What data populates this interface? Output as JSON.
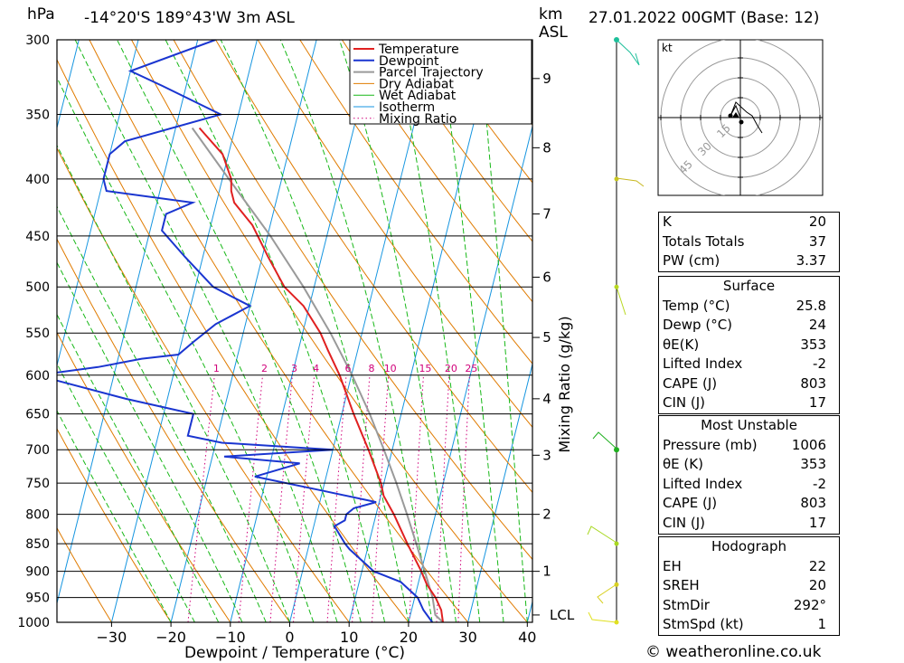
{
  "header": {
    "p_unit": "hPa",
    "location": "-14°20'S  189°43'W  3m  ASL",
    "km_label": "km",
    "asl_label": "ASL",
    "datetime": "27.01.2022  00GMT  (Base: 12)"
  },
  "footer": {
    "copyright": "© weatheronline.co.uk"
  },
  "chart_data": {
    "type": "skewt",
    "xlabel": "Dewpoint / Temperature (°C)",
    "ylabel_left": "hPa",
    "ylabel_right": "Mixing Ratio (g/kg)",
    "x_ticks": [
      -30,
      -20,
      -10,
      0,
      10,
      20,
      30,
      40
    ],
    "pressure_levels": [
      300,
      350,
      400,
      450,
      500,
      550,
      600,
      650,
      700,
      750,
      800,
      850,
      900,
      950,
      1000
    ],
    "km_ticks": [
      {
        "km": 1,
        "p": 900
      },
      {
        "km": 2,
        "p": 800
      },
      {
        "km": 3,
        "p": 708
      },
      {
        "km": 4,
        "p": 630
      },
      {
        "km": 5,
        "p": 555
      },
      {
        "km": 6,
        "p": 490
      },
      {
        "km": 7,
        "p": 430
      },
      {
        "km": 8,
        "p": 375
      },
      {
        "km": 9,
        "p": 325
      }
    ],
    "lcl_label": "LCL",
    "lcl_pressure": 985,
    "mixing_ratio_labels": [
      1,
      2,
      3,
      4,
      6,
      8,
      10,
      15,
      20,
      25
    ],
    "legend": [
      "Temperature",
      "Dewpoint",
      "Parcel Trajectory",
      "Dry Adiabat",
      "Wet Adiabat",
      "Isotherm",
      "Mixing Ratio"
    ],
    "colors": {
      "temperature": "#e02020",
      "dewpoint": "#1a35d0",
      "parcel": "#9a9a9a",
      "dry_adiabat": "#e07b00",
      "wet_adiabat": "#18b818",
      "isotherm": "#1595e0",
      "mixing_ratio": "#d0007a"
    },
    "series": [
      {
        "name": "Temperature",
        "p": [
          1000,
          975,
          950,
          925,
          900,
          850,
          800,
          770,
          750,
          700,
          650,
          600,
          570,
          550,
          520,
          500,
          470,
          440,
          420,
          410,
          400,
          380,
          360
        ],
        "values": [
          25.8,
          25,
          23.5,
          21.5,
          20,
          16.5,
          13,
          10.5,
          9.5,
          6,
          2,
          -2,
          -5,
          -7,
          -11,
          -15,
          -19,
          -23,
          -27,
          -28,
          -28.5,
          -31,
          -36
        ]
      },
      {
        "name": "Dewpoint",
        "p": [
          1000,
          975,
          950,
          920,
          900,
          860,
          850,
          820,
          810,
          800,
          790,
          780,
          760,
          740,
          720,
          710,
          700,
          690,
          680,
          650,
          630,
          600,
          590,
          580,
          575,
          560,
          540,
          520,
          500,
          470,
          445,
          430,
          420,
          410,
          400,
          380,
          370,
          350,
          330,
          320,
          300
        ],
        "values": [
          24,
          22,
          20.5,
          17,
          12,
          7,
          6,
          3.5,
          5,
          5,
          6,
          9.5,
          -1,
          -12,
          -5,
          -18,
          0,
          -19,
          -25,
          -25,
          -37,
          -53,
          -43,
          -36,
          -30,
          -28,
          -25,
          -20,
          -27,
          -33,
          -38,
          -38,
          -34,
          -49,
          -50,
          -50,
          -48,
          -33,
          -44,
          -50,
          -37
        ]
      },
      {
        "name": "Parcel Trajectory",
        "p": [
          1000,
          985,
          950,
          900,
          850,
          800,
          750,
          700,
          650,
          600,
          550,
          500,
          450,
          400,
          360
        ],
        "values": [
          25.8,
          24.2,
          23,
          20.6,
          18,
          15.2,
          12.1,
          8.6,
          4.7,
          0.1,
          -5.3,
          -11.8,
          -19.5,
          -28.9,
          -37.2
        ]
      }
    ]
  },
  "hodograph": {
    "unit_label": "kt",
    "ring_labels": [
      "15",
      "30",
      "45"
    ]
  },
  "indices": {
    "general": [
      {
        "label": "K",
        "value": "20"
      },
      {
        "label": "Totals Totals",
        "value": "37"
      },
      {
        "label": "PW (cm)",
        "value": "3.37"
      }
    ],
    "surface": {
      "title": "Surface",
      "rows": [
        {
          "label": "Temp (°C)",
          "value": "25.8"
        },
        {
          "label": "Dewp (°C)",
          "value": "24"
        },
        {
          "label": "θE(K)",
          "value": "353"
        },
        {
          "label": "Lifted Index",
          "value": "-2"
        },
        {
          "label": "CAPE (J)",
          "value": "803"
        },
        {
          "label": "CIN (J)",
          "value": "17"
        }
      ]
    },
    "most_unstable": {
      "title": "Most Unstable",
      "rows": [
        {
          "label": "Pressure (mb)",
          "value": "1006"
        },
        {
          "label": "θE (K)",
          "value": "353"
        },
        {
          "label": "Lifted Index",
          "value": "-2"
        },
        {
          "label": "CAPE (J)",
          "value": "803"
        },
        {
          "label": "CIN (J)",
          "value": "17"
        }
      ]
    },
    "hodograph_params": {
      "title": "Hodograph",
      "rows": [
        {
          "label": "EH",
          "value": "22"
        },
        {
          "label": "SREH",
          "value": "20"
        },
        {
          "label": "StmDir",
          "value": "292°"
        },
        {
          "label": "StmSpd (kt)",
          "value": "1"
        }
      ]
    }
  }
}
